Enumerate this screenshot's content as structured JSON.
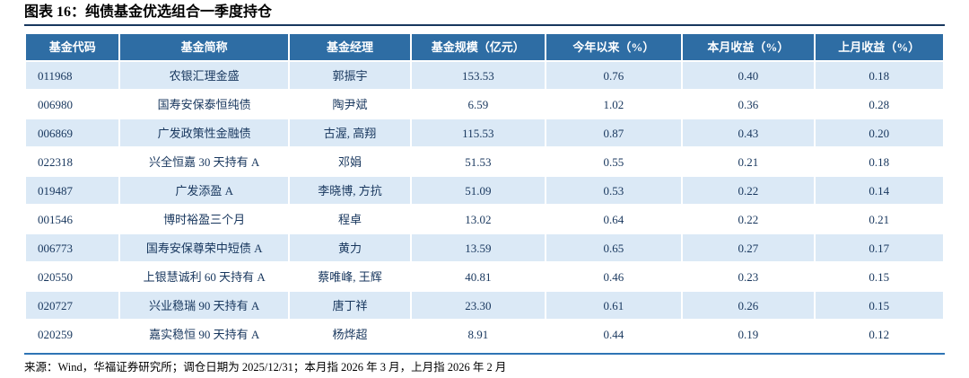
{
  "chart_data": {
    "type": "table",
    "title": "图表 16：纯债基金优选组合一季度持仓",
    "columns": [
      "基金代码",
      "基金简称",
      "基金经理",
      "基金规模（亿元）",
      "今年以来（%）",
      "本月收益（%）",
      "上月收益（%）"
    ],
    "rows": [
      [
        "011968",
        "农银汇理金盛",
        "郭振宇",
        "153.53",
        "0.76",
        "0.40",
        "0.18"
      ],
      [
        "006980",
        "国寿安保泰恒纯债",
        "陶尹斌",
        "6.59",
        "1.02",
        "0.36",
        "0.28"
      ],
      [
        "006869",
        "广发政策性金融债",
        "古渥, 高翔",
        "115.53",
        "0.87",
        "0.43",
        "0.20"
      ],
      [
        "022318",
        "兴全恒嘉 30 天持有 A",
        "邓娟",
        "51.53",
        "0.55",
        "0.21",
        "0.18"
      ],
      [
        "019487",
        "广发添盈 A",
        "李晓博, 方抗",
        "51.09",
        "0.53",
        "0.22",
        "0.14"
      ],
      [
        "001546",
        "博时裕盈三个月",
        "程卓",
        "13.02",
        "0.64",
        "0.22",
        "0.21"
      ],
      [
        "006773",
        "国寿安保尊荣中短债 A",
        "黄力",
        "13.59",
        "0.65",
        "0.27",
        "0.17"
      ],
      [
        "020550",
        "上银慧诚利 60 天持有 A",
        "蔡唯峰, 王辉",
        "40.81",
        "0.46",
        "0.23",
        "0.15"
      ],
      [
        "020727",
        "兴业稳瑞 90 天持有 A",
        "唐丁祥",
        "23.30",
        "0.61",
        "0.26",
        "0.15"
      ],
      [
        "020259",
        "嘉实稳恒 90 天持有 A",
        "杨烨超",
        "8.91",
        "0.44",
        "0.19",
        "0.12"
      ]
    ]
  },
  "source_note": "来源：Wind，华福证券研究所；调仓日期为 2025/12/31；本月指 2026 年 3 月，上月指 2026 年 2 月",
  "colors": {
    "header-bg": "#2e6da4",
    "stripe": "#dbe9f6",
    "text-navy": "#17365d",
    "title-rule": "#17375e",
    "footer-rule": "#2e74b5"
  }
}
